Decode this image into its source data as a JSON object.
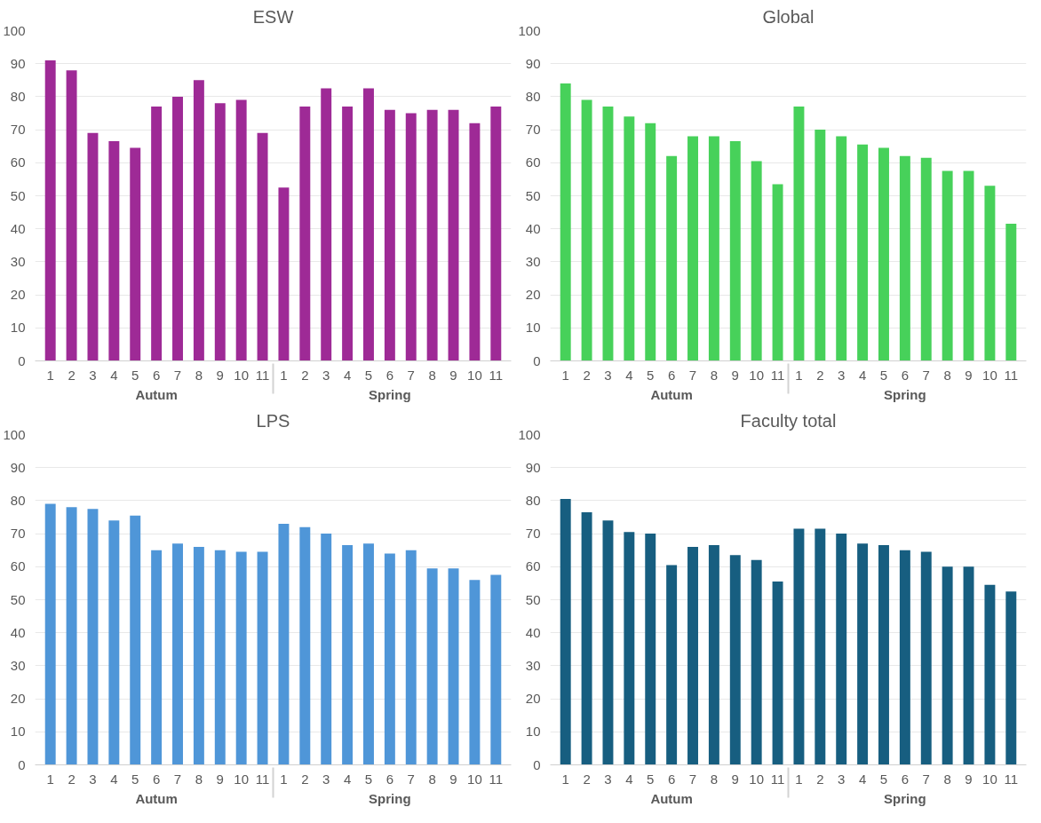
{
  "chart_data": [
    {
      "type": "bar",
      "title": "ESW",
      "categories": [
        "1",
        "2",
        "3",
        "4",
        "5",
        "6",
        "7",
        "8",
        "9",
        "10",
        "11",
        "1",
        "2",
        "3",
        "4",
        "5",
        "6",
        "7",
        "8",
        "9",
        "10",
        "11"
      ],
      "annotations": [
        "Autum",
        "Spring"
      ],
      "values": [
        91,
        88,
        69,
        66.5,
        64.5,
        77,
        80,
        85,
        78,
        79,
        69,
        52.5,
        77,
        82.5,
        77,
        82.5,
        76,
        75,
        76,
        76,
        72,
        77
      ],
      "color": "#9e2a96",
      "ylim": [
        0,
        100
      ],
      "yticks": [
        0,
        10,
        20,
        30,
        40,
        50,
        60,
        70,
        80,
        90,
        100
      ],
      "grid": "y"
    },
    {
      "type": "bar",
      "title": "Global",
      "categories": [
        "1",
        "2",
        "3",
        "4",
        "5",
        "6",
        "7",
        "8",
        "9",
        "10",
        "11",
        "1",
        "2",
        "3",
        "4",
        "5",
        "6",
        "7",
        "8",
        "9",
        "10",
        "11"
      ],
      "annotations": [
        "Autum",
        "Spring"
      ],
      "values": [
        84,
        79,
        77,
        74,
        72,
        62,
        68,
        68,
        66.5,
        60.5,
        53.5,
        77,
        70,
        68,
        65.5,
        64.5,
        62,
        61.5,
        57.5,
        57.5,
        53,
        41.5
      ],
      "color": "#47d15a",
      "ylim": [
        0,
        100
      ],
      "yticks": [
        0,
        10,
        20,
        30,
        40,
        50,
        60,
        70,
        80,
        90,
        100
      ],
      "grid": "y"
    },
    {
      "type": "bar",
      "title": "LPS",
      "categories": [
        "1",
        "2",
        "3",
        "4",
        "5",
        "6",
        "7",
        "8",
        "9",
        "10",
        "11",
        "1",
        "2",
        "3",
        "4",
        "5",
        "6",
        "7",
        "8",
        "9",
        "10",
        "11"
      ],
      "annotations": [
        "Autum",
        "Spring"
      ],
      "values": [
        79,
        78,
        77.5,
        74,
        75.5,
        65,
        67,
        66,
        65,
        64.5,
        64.5,
        73,
        72,
        70,
        66.5,
        67,
        64,
        65,
        59.5,
        59.5,
        56,
        57.5
      ],
      "color": "#4f96d8",
      "ylim": [
        0,
        100
      ],
      "yticks": [
        0,
        10,
        20,
        30,
        40,
        50,
        60,
        70,
        80,
        90,
        100
      ],
      "grid": "y"
    },
    {
      "type": "bar",
      "title": "Faculty total",
      "categories": [
        "1",
        "2",
        "3",
        "4",
        "5",
        "6",
        "7",
        "8",
        "9",
        "10",
        "11",
        "1",
        "2",
        "3",
        "4",
        "5",
        "6",
        "7",
        "8",
        "9",
        "10",
        "11"
      ],
      "annotations": [
        "Autum",
        "Spring"
      ],
      "values": [
        80.5,
        76.5,
        74,
        70.5,
        70,
        60.5,
        66,
        66.5,
        63.5,
        62,
        55.5,
        71.5,
        71.5,
        70,
        67,
        66.5,
        65,
        64.5,
        60,
        60,
        54.5,
        52.5
      ],
      "color": "#175e80",
      "ylim": [
        0,
        100
      ],
      "yticks": [
        0,
        10,
        20,
        30,
        40,
        50,
        60,
        70,
        80,
        90,
        100
      ],
      "grid": "y"
    }
  ]
}
